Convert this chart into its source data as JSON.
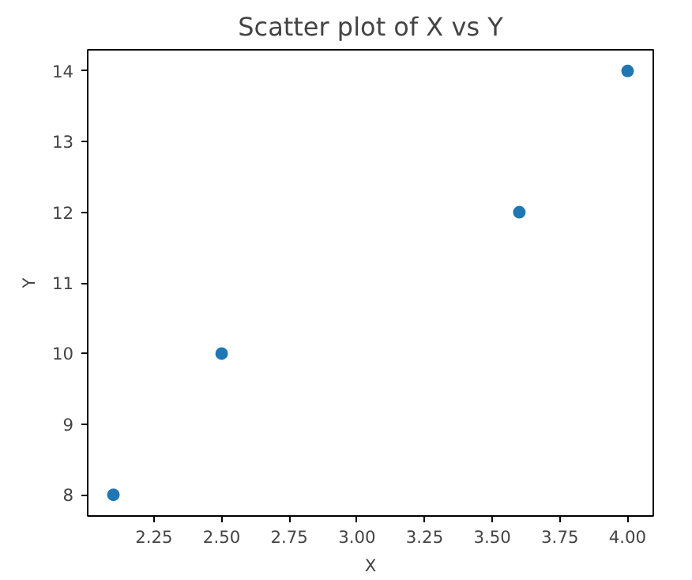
{
  "chart_data": {
    "type": "scatter",
    "title": "Scatter plot of X vs Y",
    "xlabel": "X",
    "ylabel": "Y",
    "x": [
      2.1,
      2.5,
      3.6,
      4.0
    ],
    "series": [
      {
        "color": "#1f77b4",
        "values": [
          8,
          10,
          12,
          14
        ]
      }
    ],
    "xlim": [
      2.005,
      4.095
    ],
    "ylim": [
      7.7,
      14.3
    ],
    "xticks": [
      2.25,
      {
        "value": 2.5,
        "label": "2.50"
      },
      2.75,
      {
        "value": 3,
        "label": "3.00"
      },
      3.25,
      {
        "value": 3.5,
        "label": "3.50"
      },
      3.75,
      {
        "value": 4,
        "label": "4.00"
      }
    ],
    "yticks": [
      8,
      9,
      10,
      11,
      12,
      13,
      14
    ],
    "marker": "circle",
    "grid": false
  }
}
